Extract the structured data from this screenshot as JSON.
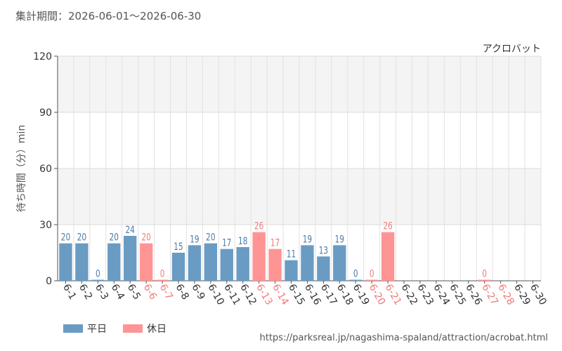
{
  "header": {
    "period_text": "集計期間：2026-06-01～2026-06-30"
  },
  "chart_data": {
    "type": "bar",
    "title": "アクロバット",
    "ylabel": "待ち時間（分）min",
    "xlabel": "",
    "ylim": [
      0,
      120
    ],
    "yticks": [
      0,
      30,
      60,
      90,
      120
    ],
    "grid": true,
    "legend_placement": "bottom-left",
    "categories": [
      "6-1",
      "6-2",
      "6-3",
      "6-4",
      "6-5",
      "6-6",
      "6-7",
      "6-8",
      "6-9",
      "6-10",
      "6-11",
      "6-12",
      "6-13",
      "6-14",
      "6-15",
      "6-16",
      "6-17",
      "6-18",
      "6-19",
      "6-20",
      "6-21",
      "6-22",
      "6-23",
      "6-24",
      "6-25",
      "6-26",
      "6-27",
      "6-28",
      "6-29",
      "6-30"
    ],
    "values": [
      20,
      20,
      0,
      20,
      24,
      20,
      0,
      15,
      19,
      20,
      17,
      18,
      26,
      17,
      11,
      19,
      13,
      19,
      0,
      0,
      26,
      null,
      null,
      null,
      null,
      null,
      0,
      null,
      null,
      null
    ],
    "day_type": [
      "weekday",
      "weekday",
      "weekday",
      "weekday",
      "weekday",
      "holiday",
      "holiday",
      "weekday",
      "weekday",
      "weekday",
      "weekday",
      "weekday",
      "holiday",
      "holiday",
      "weekday",
      "weekday",
      "weekday",
      "weekday",
      "weekday",
      "holiday",
      "holiday",
      "weekday",
      "weekday",
      "weekday",
      "weekday",
      "weekday",
      "holiday",
      "holiday",
      "weekday",
      "weekday"
    ],
    "series": [
      {
        "name": "平日",
        "color": "#6a9bc3",
        "label_color": "#4a7aa8"
      },
      {
        "name": "休日",
        "color": "#ff9494",
        "label_color": "#f07a7a"
      }
    ]
  },
  "legend": {
    "weekday_label": "平日",
    "holiday_label": "休日"
  },
  "footer": {
    "source_url": "https://parksreal.jp/nagashima-spaland/attraction/acrobat.html"
  }
}
